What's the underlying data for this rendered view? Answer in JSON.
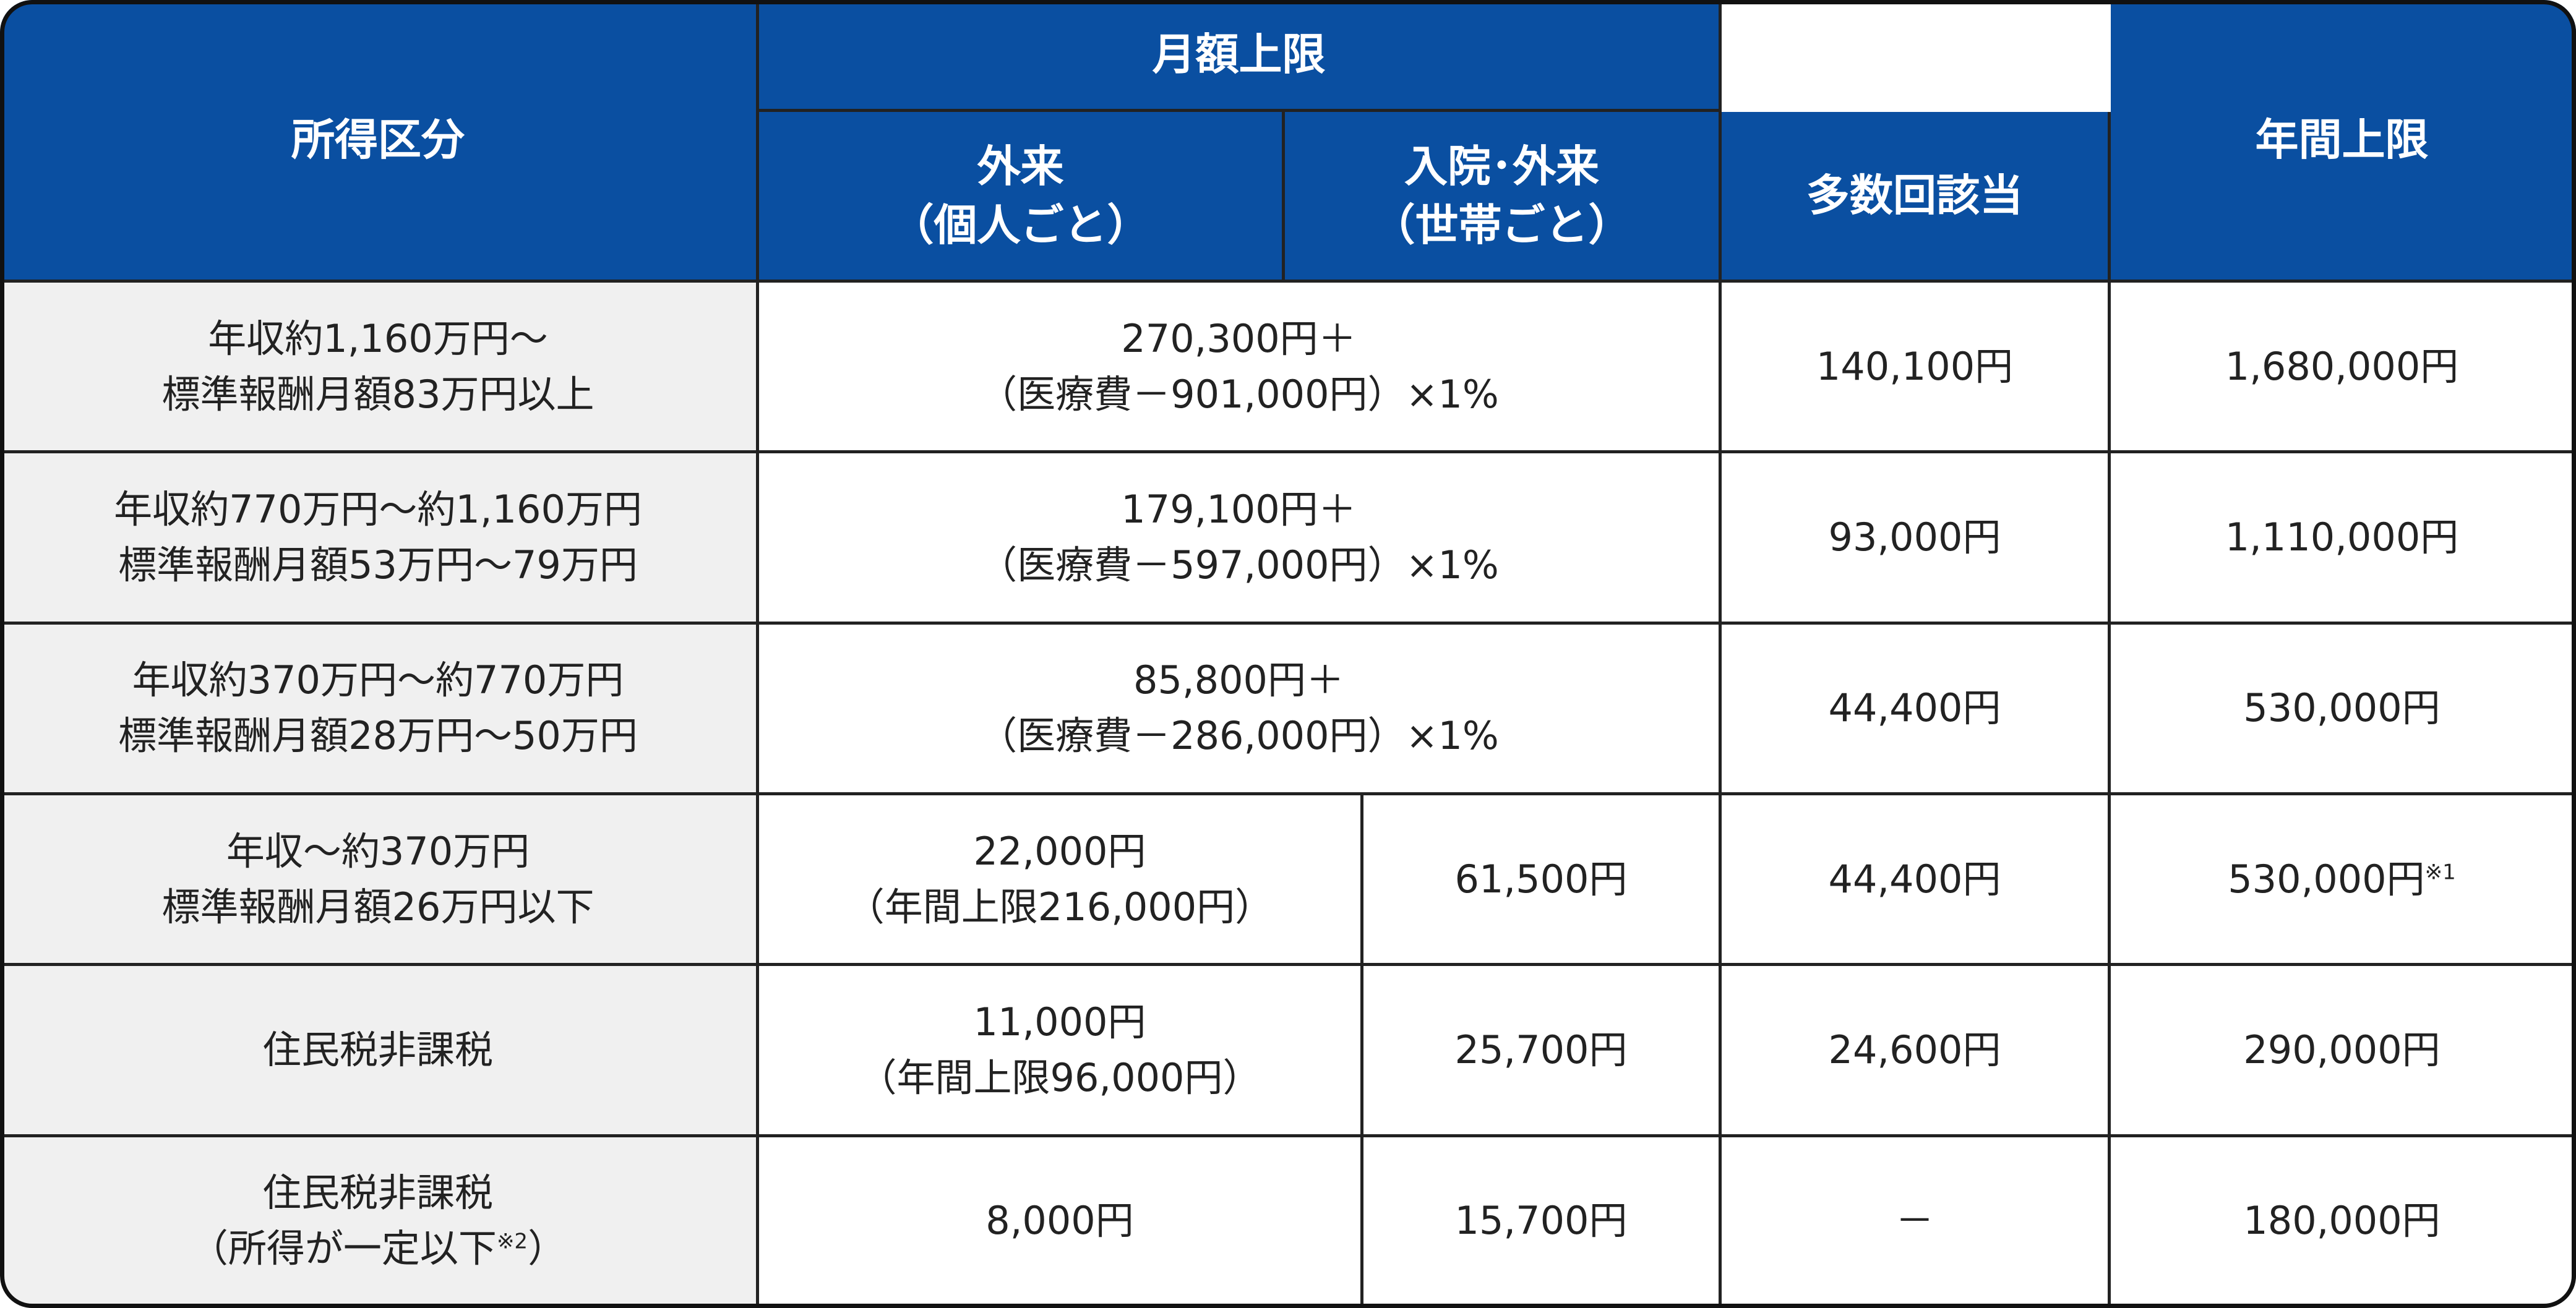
{
  "header": {
    "income": "所得区分",
    "monthly": "月額上限",
    "outpatient": [
      "外来",
      "（個人ごと）"
    ],
    "inpatient": [
      "入院･外来",
      "（世帯ごと）"
    ],
    "multiple": "多数回該当",
    "annual": "年間上限"
  },
  "rows": [
    {
      "income": [
        "年収約1,160万円～",
        "標準報酬月額83万円以上"
      ],
      "combined": [
        "270,300円＋",
        "（医療費－901,000円）×1%"
      ],
      "multiple": "140,100円",
      "annual": "1,680,000円"
    },
    {
      "income": [
        "年収約770万円～約1,160万円",
        "標準報酬月額53万円～79万円"
      ],
      "combined": [
        "179,100円＋",
        "（医療費－597,000円）×1%"
      ],
      "multiple": "93,000円",
      "annual": "1,110,000円"
    },
    {
      "income": [
        "年収約370万円～約770万円",
        "標準報酬月額28万円～50万円"
      ],
      "combined": [
        "85,800円＋",
        "（医療費－286,000円）×1%"
      ],
      "multiple": "44,400円",
      "annual": "530,000円"
    },
    {
      "income": [
        "年収～約370万円",
        "標準報酬月額26万円以下"
      ],
      "outpatient": [
        "22,000円",
        "（年間上限216,000円）"
      ],
      "inpatient": "61,500円",
      "multiple": "44,400円",
      "annual": "530,000円",
      "annual_note": "※1"
    },
    {
      "income": [
        "住民税非課税"
      ],
      "outpatient": [
        "11,000円",
        "（年間上限96,000円）"
      ],
      "inpatient": "25,700円",
      "multiple": "24,600円",
      "annual": "290,000円"
    },
    {
      "income": [
        "住民税非課税",
        "（所得が一定以下"
      ],
      "income_note": "※2",
      "income_close": "）",
      "outpatient": [
        "8,000円"
      ],
      "inpatient": "15,700円",
      "multiple": "－",
      "annual": "180,000円"
    }
  ]
}
